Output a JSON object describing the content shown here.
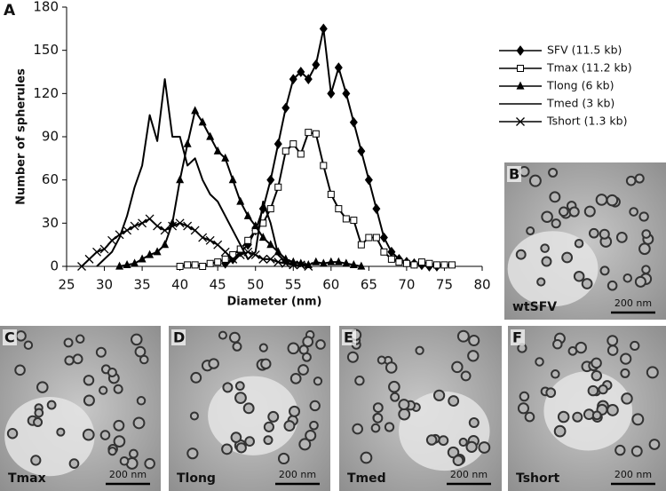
{
  "chart_data": {
    "type": "line",
    "panel_label": "A",
    "xlabel": "Diameter (nm)",
    "ylabel": "Number of spherules",
    "xlim": [
      25,
      80
    ],
    "xticks": [
      25,
      30,
      35,
      40,
      45,
      50,
      55,
      60,
      65,
      70,
      75,
      80
    ],
    "ylim": [
      0,
      180
    ],
    "yticks": [
      0,
      30,
      60,
      90,
      120,
      150,
      180
    ],
    "series": [
      {
        "name": "SFV (11.5 kb)",
        "color": "#000000",
        "marker": "diamond",
        "x": [
          46,
          47,
          48,
          49,
          50,
          51,
          52,
          53,
          54,
          55,
          56,
          57,
          58,
          59,
          60,
          61,
          62,
          63,
          64,
          65,
          66,
          67,
          68,
          69,
          70,
          71,
          72,
          73,
          74
        ],
        "values": [
          2,
          5,
          10,
          15,
          25,
          40,
          60,
          85,
          110,
          130,
          135,
          130,
          140,
          165,
          120,
          138,
          120,
          100,
          80,
          60,
          40,
          20,
          10,
          5,
          3,
          2,
          1,
          0,
          0
        ]
      },
      {
        "name": "Tmax (11.2 kb)",
        "color": "#000000",
        "marker": "square",
        "x": [
          40,
          41,
          42,
          43,
          44,
          45,
          46,
          47,
          48,
          49,
          50,
          51,
          52,
          53,
          54,
          55,
          56,
          57,
          58,
          59,
          60,
          61,
          62,
          63,
          64,
          65,
          66,
          67,
          68,
          69,
          70,
          71,
          72,
          73,
          74,
          75,
          76
        ],
        "values": [
          0,
          1,
          1,
          0,
          2,
          3,
          5,
          8,
          12,
          18,
          25,
          30,
          40,
          55,
          80,
          85,
          78,
          93,
          92,
          70,
          50,
          40,
          33,
          32,
          15,
          20,
          20,
          10,
          5,
          3,
          2,
          1,
          3,
          2,
          1,
          1,
          1
        ]
      },
      {
        "name": "Tlong (6 kb)",
        "color": "#000000",
        "marker": "triangle",
        "x": [
          32,
          33,
          34,
          35,
          36,
          37,
          38,
          39,
          40,
          41,
          42,
          43,
          44,
          45,
          46,
          47,
          48,
          49,
          50,
          51,
          52,
          53,
          54,
          55,
          56,
          57,
          58,
          59,
          60,
          61,
          62,
          63,
          64
        ],
        "values": [
          0,
          1,
          2,
          5,
          8,
          10,
          15,
          30,
          60,
          85,
          108,
          100,
          90,
          80,
          75,
          60,
          45,
          35,
          28,
          20,
          15,
          10,
          5,
          3,
          2,
          1,
          3,
          2,
          3,
          3,
          2,
          1,
          0
        ]
      },
      {
        "name": "Tmed (3 kb)",
        "color": "#000000",
        "marker": "none",
        "x": [
          29,
          30,
          31,
          32,
          33,
          34,
          35,
          36,
          37,
          38,
          39,
          40,
          41,
          42,
          43,
          44,
          45,
          46,
          47,
          48,
          49,
          50,
          51,
          52,
          53,
          54,
          55,
          56
        ],
        "values": [
          0,
          5,
          10,
          20,
          35,
          55,
          70,
          105,
          87,
          130,
          90,
          90,
          70,
          75,
          60,
          50,
          45,
          35,
          25,
          15,
          5,
          10,
          45,
          30,
          8,
          3,
          1,
          0
        ]
      },
      {
        "name": "Tshort (1.3 kb)",
        "color": "#000000",
        "marker": "cross",
        "x": [
          27,
          28,
          29,
          30,
          31,
          32,
          33,
          34,
          35,
          36,
          37,
          38,
          39,
          40,
          41,
          42,
          43,
          44,
          45,
          46,
          47,
          48,
          49,
          50,
          51,
          52,
          53,
          54,
          55,
          56,
          57
        ],
        "values": [
          0,
          5,
          10,
          12,
          18,
          22,
          25,
          28,
          30,
          33,
          28,
          25,
          28,
          30,
          28,
          25,
          20,
          18,
          15,
          10,
          5,
          8,
          10,
          8,
          5,
          5,
          3,
          2,
          1,
          1,
          0
        ]
      }
    ]
  },
  "panels": [
    {
      "letter": "B",
      "caption": "wtSFV",
      "scale": "200 nm"
    },
    {
      "letter": "C",
      "caption": "Tmax",
      "scale": "200 nm"
    },
    {
      "letter": "D",
      "caption": "Tlong",
      "scale": "200 nm"
    },
    {
      "letter": "E",
      "caption": "Tmed",
      "scale": "200 nm"
    },
    {
      "letter": "F",
      "caption": "Tshort",
      "scale": "200 nm"
    }
  ]
}
